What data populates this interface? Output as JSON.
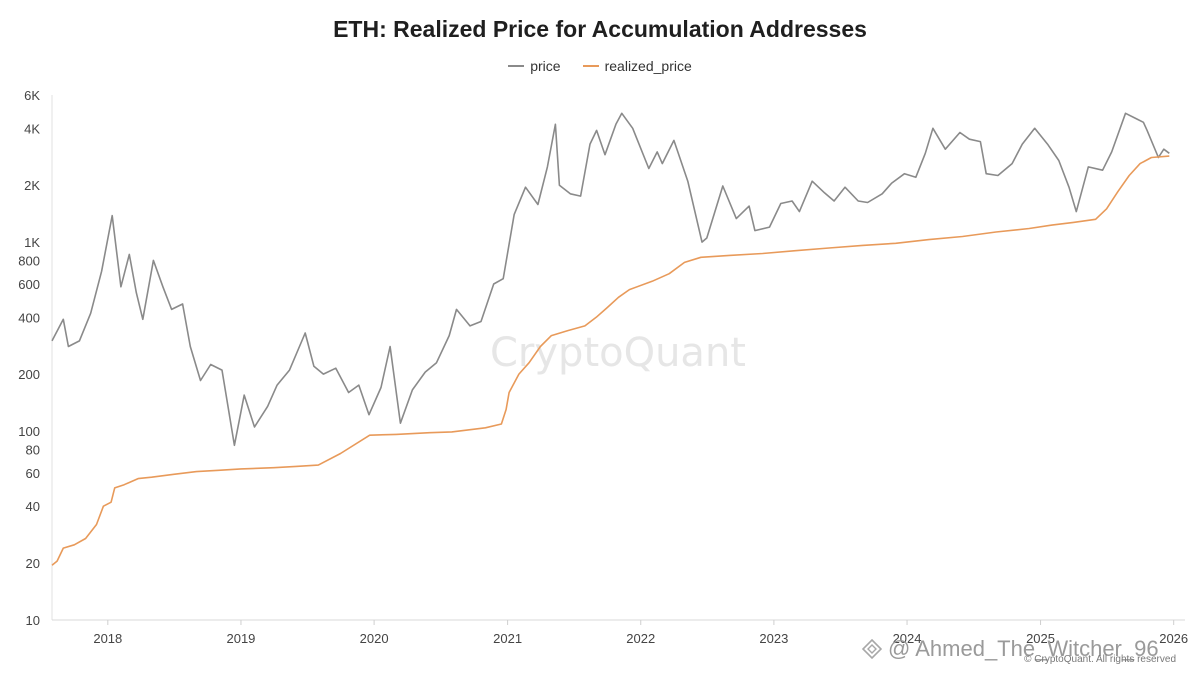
{
  "chart_data": {
    "type": "line",
    "title": "ETH: Realized Price for Accumulation Addresses",
    "xlabel": "",
    "ylabel": "",
    "y_scale": "log",
    "ylim": [
      10,
      6000
    ],
    "xlim": [
      "2017-08-01",
      "2026-02-01"
    ],
    "y_ticks": [
      10,
      20,
      40,
      60,
      80,
      100,
      200,
      400,
      600,
      800,
      1000,
      2000,
      4000,
      6000
    ],
    "y_tick_labels": [
      "10",
      "20",
      "40",
      "60",
      "80",
      "100",
      "200",
      "400",
      "600",
      "800",
      "1K",
      "2K",
      "4K",
      "6K"
    ],
    "x_ticks": [
      "2018-01-01",
      "2019-01-01",
      "2020-01-01",
      "2021-01-01",
      "2022-01-01",
      "2023-01-01",
      "2024-01-01",
      "2025-01-01",
      "2026-01-01"
    ],
    "x_tick_labels": [
      "2018",
      "2019",
      "2020",
      "2021",
      "2022",
      "2023",
      "2024",
      "2025",
      "2026"
    ],
    "legend": "top-center",
    "grid": false,
    "series": [
      {
        "name": "price",
        "color": "#8a8a8a",
        "points": [
          [
            "2017-08-01",
            300
          ],
          [
            "2017-09-01",
            390
          ],
          [
            "2017-09-15",
            280
          ],
          [
            "2017-10-15",
            300
          ],
          [
            "2017-11-15",
            420
          ],
          [
            "2017-12-15",
            700
          ],
          [
            "2018-01-13",
            1380
          ],
          [
            "2018-02-06",
            580
          ],
          [
            "2018-03-01",
            860
          ],
          [
            "2018-03-20",
            540
          ],
          [
            "2018-04-07",
            390
          ],
          [
            "2018-05-06",
            800
          ],
          [
            "2018-06-01",
            580
          ],
          [
            "2018-06-25",
            440
          ],
          [
            "2018-07-25",
            470
          ],
          [
            "2018-08-15",
            280
          ],
          [
            "2018-09-12",
            185
          ],
          [
            "2018-10-10",
            225
          ],
          [
            "2018-11-10",
            210
          ],
          [
            "2018-12-14",
            84
          ],
          [
            "2019-01-10",
            155
          ],
          [
            "2019-02-07",
            105
          ],
          [
            "2019-03-15",
            135
          ],
          [
            "2019-04-10",
            175
          ],
          [
            "2019-05-14",
            210
          ],
          [
            "2019-06-26",
            330
          ],
          [
            "2019-07-20",
            220
          ],
          [
            "2019-08-15",
            200
          ],
          [
            "2019-09-18",
            215
          ],
          [
            "2019-10-23",
            160
          ],
          [
            "2019-11-20",
            175
          ],
          [
            "2019-12-18",
            122
          ],
          [
            "2020-01-20",
            170
          ],
          [
            "2020-02-14",
            280
          ],
          [
            "2020-03-13",
            110
          ],
          [
            "2020-04-15",
            165
          ],
          [
            "2020-05-20",
            205
          ],
          [
            "2020-06-20",
            230
          ],
          [
            "2020-07-25",
            320
          ],
          [
            "2020-08-14",
            440
          ],
          [
            "2020-09-20",
            360
          ],
          [
            "2020-10-20",
            380
          ],
          [
            "2020-11-24",
            600
          ],
          [
            "2020-12-20",
            640
          ],
          [
            "2021-01-19",
            1400
          ],
          [
            "2021-02-19",
            1950
          ],
          [
            "2021-03-25",
            1580
          ],
          [
            "2021-04-20",
            2500
          ],
          [
            "2021-05-12",
            4200
          ],
          [
            "2021-05-23",
            2000
          ],
          [
            "2021-06-22",
            1800
          ],
          [
            "2021-07-20",
            1750
          ],
          [
            "2021-08-15",
            3300
          ],
          [
            "2021-09-02",
            3900
          ],
          [
            "2021-09-25",
            2900
          ],
          [
            "2021-10-25",
            4200
          ],
          [
            "2021-11-10",
            4800
          ],
          [
            "2021-12-10",
            4000
          ],
          [
            "2022-01-23",
            2450
          ],
          [
            "2022-02-15",
            3000
          ],
          [
            "2022-03-01",
            2600
          ],
          [
            "2022-04-02",
            3450
          ],
          [
            "2022-05-10",
            2100
          ],
          [
            "2022-06-18",
            1000
          ],
          [
            "2022-07-01",
            1050
          ],
          [
            "2022-08-14",
            1980
          ],
          [
            "2022-09-20",
            1330
          ],
          [
            "2022-10-25",
            1550
          ],
          [
            "2022-11-10",
            1150
          ],
          [
            "2022-12-20",
            1200
          ],
          [
            "2023-01-20",
            1600
          ],
          [
            "2023-02-20",
            1650
          ],
          [
            "2023-03-12",
            1450
          ],
          [
            "2023-04-16",
            2100
          ],
          [
            "2023-05-20",
            1820
          ],
          [
            "2023-06-15",
            1650
          ],
          [
            "2023-07-15",
            1950
          ],
          [
            "2023-08-20",
            1650
          ],
          [
            "2023-09-15",
            1620
          ],
          [
            "2023-10-25",
            1800
          ],
          [
            "2023-11-20",
            2050
          ],
          [
            "2023-12-25",
            2300
          ],
          [
            "2024-01-25",
            2200
          ],
          [
            "2024-02-20",
            2950
          ],
          [
            "2024-03-12",
            4000
          ],
          [
            "2024-04-15",
            3100
          ],
          [
            "2024-05-25",
            3800
          ],
          [
            "2024-06-20",
            3500
          ],
          [
            "2024-07-20",
            3400
          ],
          [
            "2024-08-05",
            2300
          ],
          [
            "2024-09-06",
            2250
          ],
          [
            "2024-10-15",
            2600
          ],
          [
            "2024-11-12",
            3300
          ],
          [
            "2024-12-16",
            4000
          ],
          [
            "2025-01-20",
            3300
          ],
          [
            "2025-02-20",
            2700
          ],
          [
            "2025-03-20",
            1950
          ],
          [
            "2025-04-09",
            1450
          ],
          [
            "2025-05-12",
            2500
          ],
          [
            "2025-06-20",
            2400
          ],
          [
            "2025-07-15",
            3000
          ],
          [
            "2025-08-22",
            4800
          ],
          [
            "2025-09-20",
            4500
          ],
          [
            "2025-10-10",
            4300
          ],
          [
            "2025-10-20",
            3900
          ],
          [
            "2025-11-20",
            2800
          ],
          [
            "2025-12-05",
            3100
          ],
          [
            "2025-12-20",
            2950
          ]
        ]
      },
      {
        "name": "realized_price",
        "color": "#e89a5a",
        "points": [
          [
            "2017-08-01",
            19.5
          ],
          [
            "2017-08-15",
            20.5
          ],
          [
            "2017-09-01",
            24
          ],
          [
            "2017-10-01",
            25
          ],
          [
            "2017-11-01",
            27
          ],
          [
            "2017-12-01",
            32
          ],
          [
            "2017-12-20",
            40
          ],
          [
            "2018-01-10",
            42
          ],
          [
            "2018-01-20",
            50
          ],
          [
            "2018-02-15",
            52
          ],
          [
            "2018-03-25",
            56
          ],
          [
            "2018-05-01",
            57
          ],
          [
            "2018-07-01",
            59
          ],
          [
            "2018-09-01",
            61
          ],
          [
            "2018-11-01",
            62
          ],
          [
            "2019-01-01",
            63
          ],
          [
            "2019-04-01",
            64
          ],
          [
            "2019-06-01",
            65
          ],
          [
            "2019-08-01",
            66
          ],
          [
            "2019-10-01",
            76
          ],
          [
            "2019-12-20",
            95
          ],
          [
            "2020-03-01",
            96
          ],
          [
            "2020-06-01",
            98
          ],
          [
            "2020-08-01",
            99
          ],
          [
            "2020-11-01",
            104
          ],
          [
            "2020-12-15",
            109
          ],
          [
            "2020-12-28",
            130
          ],
          [
            "2021-01-05",
            160
          ],
          [
            "2021-02-01",
            200
          ],
          [
            "2021-03-01",
            230
          ],
          [
            "2021-04-01",
            280
          ],
          [
            "2021-05-01",
            320
          ],
          [
            "2021-06-15",
            340
          ],
          [
            "2021-08-01",
            360
          ],
          [
            "2021-09-01",
            400
          ],
          [
            "2021-10-01",
            450
          ],
          [
            "2021-11-01",
            510
          ],
          [
            "2021-12-01",
            560
          ],
          [
            "2022-02-01",
            620
          ],
          [
            "2022-03-20",
            680
          ],
          [
            "2022-05-01",
            780
          ],
          [
            "2022-06-15",
            830
          ],
          [
            "2022-09-01",
            850
          ],
          [
            "2022-12-01",
            870
          ],
          [
            "2023-03-01",
            900
          ],
          [
            "2023-06-01",
            930
          ],
          [
            "2023-09-01",
            960
          ],
          [
            "2023-12-01",
            985
          ],
          [
            "2024-03-01",
            1030
          ],
          [
            "2024-06-01",
            1070
          ],
          [
            "2024-09-01",
            1130
          ],
          [
            "2024-12-01",
            1180
          ],
          [
            "2025-02-01",
            1230
          ],
          [
            "2025-04-01",
            1270
          ],
          [
            "2025-06-01",
            1320
          ],
          [
            "2025-07-01",
            1500
          ],
          [
            "2025-08-01",
            1850
          ],
          [
            "2025-09-01",
            2250
          ],
          [
            "2025-10-01",
            2600
          ],
          [
            "2025-11-01",
            2800
          ],
          [
            "2025-12-20",
            2850
          ]
        ]
      }
    ]
  },
  "watermark": "CryptoQuant",
  "copyright": "© CryptoQuant. All rights reserved",
  "user_watermark": "@ Ahmed_The_Witcher_96",
  "user_watermark_icon": "diamond-icon"
}
